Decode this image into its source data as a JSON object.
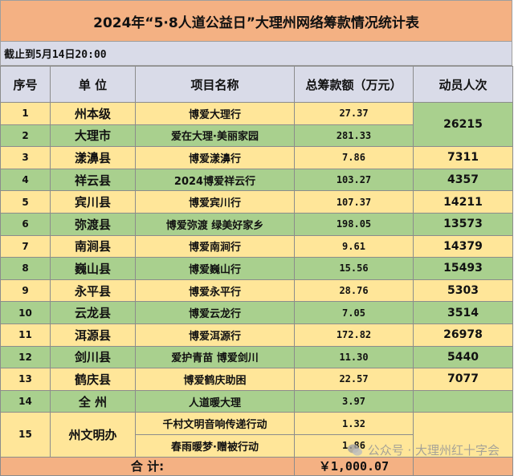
{
  "title": "2024年“5·8人道公益日”大理州网络筹款情况统计表",
  "subtitle": "截止到5月14日20:00",
  "headers": {
    "index": "序号",
    "unit": "单 位",
    "project": "项目名称",
    "amount": "总筹款额（万元）",
    "people": "动员人次"
  },
  "rows": [
    {
      "index": "1",
      "unit": "州本级",
      "project": "博爱大理行",
      "amount": "27.37"
    },
    {
      "index": "2",
      "unit": "大理市",
      "project": "爱在大理·美丽家园",
      "amount": "281.33"
    },
    {
      "index": "3",
      "unit": "漾濞县",
      "project": "博爱漾濞行",
      "amount": "7.86",
      "people": "7311"
    },
    {
      "index": "4",
      "unit": "祥云县",
      "project": "2024博爱祥云行",
      "amount": "103.27",
      "people": "4357"
    },
    {
      "index": "5",
      "unit": "宾川县",
      "project": "博爱宾川行",
      "amount": "107.37",
      "people": "14211"
    },
    {
      "index": "6",
      "unit": "弥渡县",
      "project": "博爱弥渡 绿美好家乡",
      "amount": "198.05",
      "people": "13573"
    },
    {
      "index": "7",
      "unit": "南涧县",
      "project": "博爱南涧行",
      "amount": "9.61",
      "people": "14379"
    },
    {
      "index": "8",
      "unit": "巍山县",
      "project": "博爱巍山行",
      "amount": "15.56",
      "people": "15493"
    },
    {
      "index": "9",
      "unit": "永平县",
      "project": "博爱永平行",
      "amount": "28.76",
      "people": "5303"
    },
    {
      "index": "10",
      "unit": "云龙县",
      "project": "博爱云龙行",
      "amount": "7.05",
      "people": "3514"
    },
    {
      "index": "11",
      "unit": "洱源县",
      "project": "博爱洱源行",
      "amount": "172.82",
      "people": "26978"
    },
    {
      "index": "12",
      "unit": "剑川县",
      "project": "爱护青苗 博爱剑川",
      "amount": "11.30",
      "people": "5440"
    },
    {
      "index": "13",
      "unit": "鹤庆县",
      "project": "博爱鹤庆助困",
      "amount": "22.57",
      "people": "7077"
    },
    {
      "index": "14",
      "unit": "全 州",
      "project": "人道暖大理",
      "amount": "3.97"
    },
    {
      "index": "15",
      "unit": "州文明办",
      "project": "千村文明音响传递行动",
      "amount": "1.32"
    },
    {
      "index": "",
      "unit": "",
      "project": "春雨暖梦·赠被行动",
      "amount": "1.86"
    }
  ],
  "merged_people_1_2": "26215",
  "total": {
    "label": "合 计:",
    "amount": "￥1,000.07"
  },
  "watermark": "公众号 · 大理州红十字会",
  "colors": {
    "header": "#f4b183",
    "subheader": "#d9dbe8",
    "yellow": "#ffe699",
    "green": "#a9d08e"
  }
}
